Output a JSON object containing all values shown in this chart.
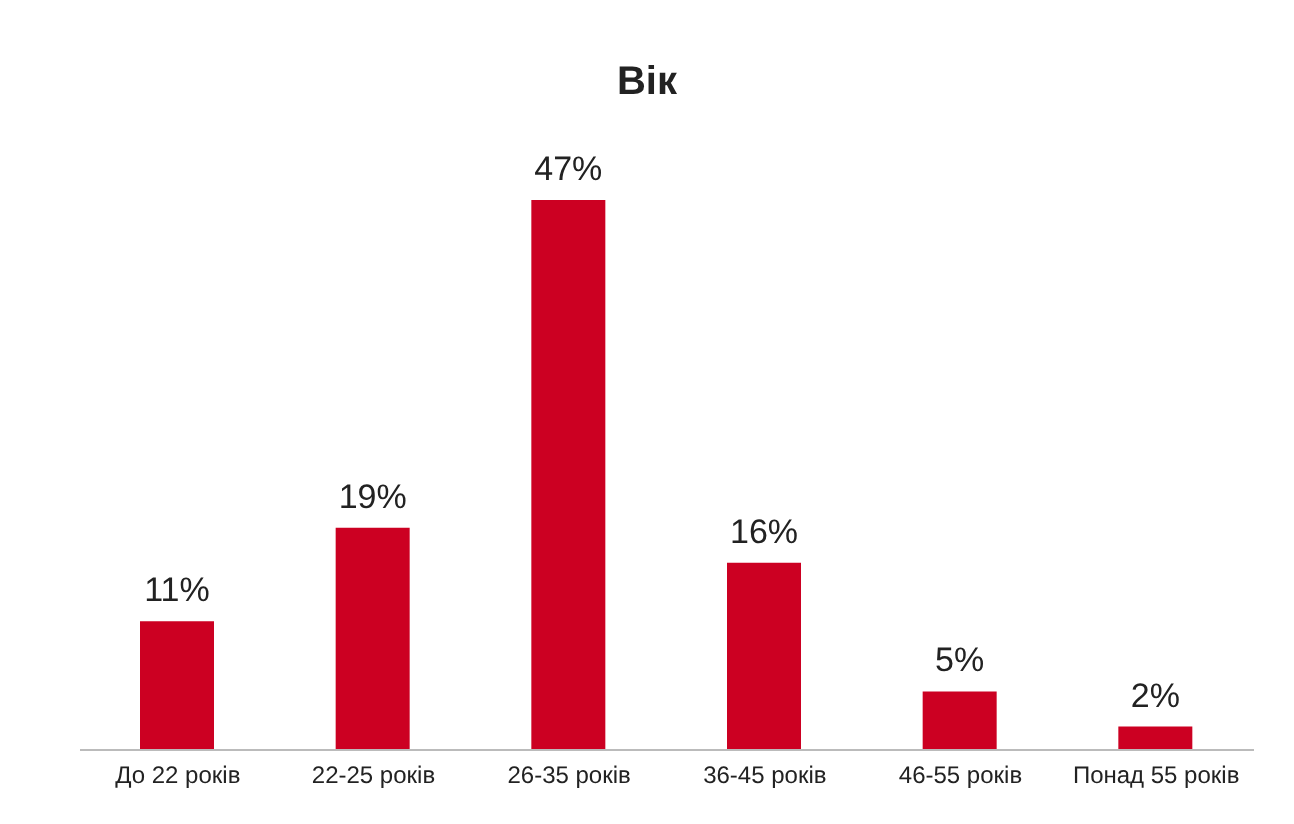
{
  "chart_data": {
    "type": "bar",
    "title": "Вік",
    "categories": [
      "До 22 років",
      "22-25 років",
      "26-35 років",
      "36-45 років",
      "46-55 років",
      "Понад 55 років"
    ],
    "values": [
      11,
      19,
      47,
      16,
      5,
      2
    ],
    "value_labels": [
      "11%",
      "19%",
      "47%",
      "16%",
      "5%",
      "2%"
    ],
    "color": "#cc0022",
    "grid": false
  }
}
